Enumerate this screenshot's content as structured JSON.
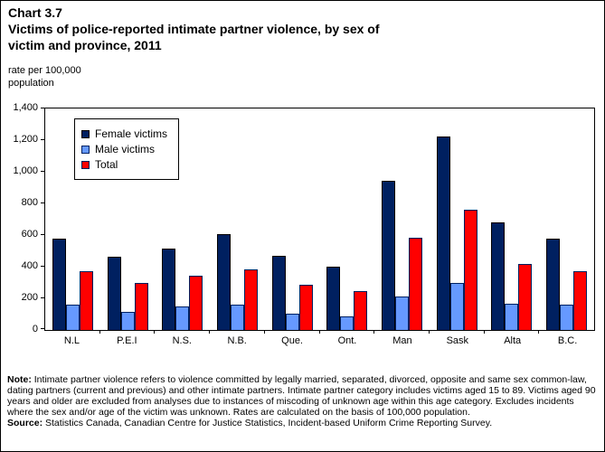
{
  "header": {
    "chart_number": "Chart 3.7",
    "title_line1": "Victims of police-reported intimate partner violence, by sex of",
    "title_line2": "victim and province, 2011"
  },
  "axis": {
    "unit_line1": "rate per 100,000",
    "unit_line2": "population"
  },
  "notes": {
    "note_label": "Note:",
    "note_text": "Intimate partner violence refers to violence committed by legally married, separated, divorced, opposite and same sex common-law, dating partners (current and previous) and other intimate partners. Intimate partner category includes victims aged 15 to 89. Victims aged 90 years and older are excluded from analyses due to instances of miscoding of unknown age within this age category. Excludes incidents where the sex and/or age of the victim was unknown. Rates are calculated on the basis of 100,000 population.",
    "source_label": "Source:",
    "source_text": "Statistics Canada, Canadian Centre for Justice Statistics, Incident-based Uniform Crime Reporting Survey."
  },
  "chart_data": {
    "type": "bar",
    "title": "Victims of police-reported intimate partner violence, by sex of victim and province, 2011",
    "xlabel": "",
    "ylabel": "rate per 100,000 population",
    "ylim": [
      0,
      1400
    ],
    "grid": false,
    "legend_position": "top-left-inside",
    "categories": [
      "N.L",
      "P.E.I",
      "N.S.",
      "N.B.",
      "Que.",
      "Ont.",
      "Man",
      "Sask",
      "Alta",
      "B.C."
    ],
    "series": [
      {
        "name": "Female victims",
        "color": "#002060",
        "border": "#000000",
        "values": [
          575,
          465,
          515,
          605,
          470,
          400,
          945,
          1225,
          680,
          575
        ]
      },
      {
        "name": "Male victims",
        "color": "#6699FF",
        "border": "#002060",
        "values": [
          160,
          115,
          150,
          160,
          105,
          85,
          210,
          295,
          165,
          160
        ]
      },
      {
        "name": "Total",
        "color": "#FF0000",
        "border": "#002060",
        "values": [
          370,
          295,
          340,
          385,
          285,
          245,
          585,
          760,
          415,
          370
        ]
      }
    ],
    "yticks": [
      {
        "label": "0",
        "value": 0
      },
      {
        "label": "200",
        "value": 200
      },
      {
        "label": "400",
        "value": 400
      },
      {
        "label": "600",
        "value": 600
      },
      {
        "label": "800",
        "value": 800
      },
      {
        "label": "1,000",
        "value": 1000
      },
      {
        "label": "1,200",
        "value": 1200
      },
      {
        "label": "1,400",
        "value": 1400
      }
    ]
  }
}
